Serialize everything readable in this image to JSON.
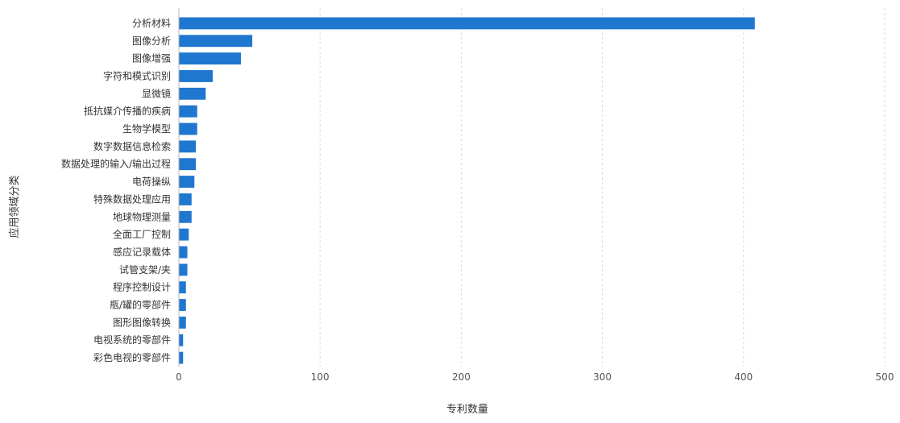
{
  "chart_data": {
    "type": "bar",
    "orientation": "horizontal",
    "categories": [
      "分析材料",
      "图像分析",
      "图像增强",
      "字符和模式识别",
      "显微镜",
      "抵抗媒介传播的疾病",
      "生物学模型",
      "数字数据信息检索",
      "数据处理的输入/输出过程",
      "电荷操纵",
      "特殊数据处理应用",
      "地球物理测量",
      "全面工厂控制",
      "感应记录载体",
      "试管支架/夹",
      "程序控制设计",
      "瓶/罐的零部件",
      "图形图像转换",
      "电视系统的零部件",
      "彩色电视的零部件"
    ],
    "values": [
      408,
      52,
      44,
      24,
      19,
      13,
      13,
      12,
      12,
      11,
      9,
      9,
      7,
      6,
      6,
      5,
      5,
      5,
      3,
      3
    ],
    "xlabel": "专利数量",
    "ylabel": "应用领域分类",
    "xlim": [
      0,
      500
    ],
    "xticks": [
      0,
      100,
      200,
      300,
      400,
      500
    ],
    "grid": "vertical",
    "legend": "none",
    "bar_color": "#1f77d0"
  }
}
